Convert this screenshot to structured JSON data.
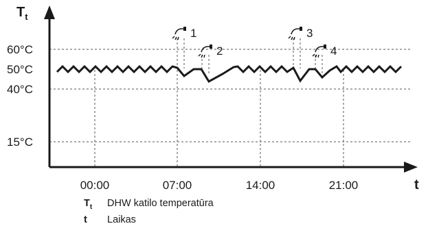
{
  "chart_data": {
    "type": "line",
    "y_axis": {
      "symbol": "T",
      "subscript": "t"
    },
    "x_axis": {
      "symbol": "t"
    },
    "y_ticks": [
      "60°C",
      "50°C",
      "40°C",
      "15°C"
    ],
    "x_ticks": [
      "00:00",
      "07:00",
      "14:00",
      "21:00"
    ],
    "events": [
      "1",
      "2",
      "3",
      "4"
    ]
  },
  "legend": [
    {
      "symbol": "T",
      "subscript": "t",
      "text": "DHW katilo temperatūra"
    },
    {
      "symbol": "t",
      "subscript": "",
      "text": "Laikas"
    }
  ]
}
